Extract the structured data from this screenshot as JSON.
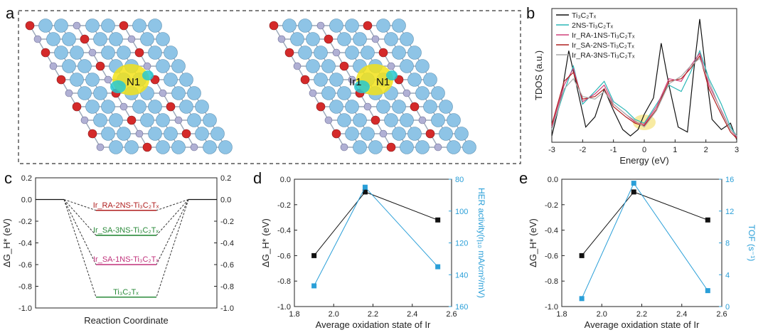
{
  "panel_a": {
    "label": "a",
    "left_structure": {
      "site_labels": [
        "N1"
      ]
    },
    "right_structure": {
      "site_labels": [
        "Ir1",
        "N1"
      ]
    },
    "colors": {
      "titanium": "#8ec4e6",
      "carbon": "#b0b0d4",
      "oxygen": "#d42a2a",
      "density_yellow": "#f2e21a",
      "density_cyan": "#27c8d0"
    }
  },
  "chart_data": [
    {
      "panel": "b",
      "type": "line",
      "title": "",
      "xlabel": "Energy (eV)",
      "ylabel": "TDOS (a.u.)",
      "xlim": [
        -3,
        3
      ],
      "xticks": [
        "-3",
        "-2",
        "-1",
        "0",
        "1",
        "2",
        "3"
      ],
      "legend": [
        "Ti₃C₂Tₓ",
        "2NS-Ti₃C₂Tₓ",
        "Ir_RA-1NS-Ti₃C₂Tₓ",
        "Ir_SA-2NS-Ti₃C₂Tₓ",
        "Ir_RA-3NS-Ti₃C₂Tₓ"
      ],
      "legend_placement": "top",
      "colors": [
        "#111111",
        "#2bb7b7",
        "#d0407a",
        "#b02020",
        "#aaaaaa"
      ],
      "series": [
        {
          "x": [
            -3,
            -2.7,
            -2.45,
            -2.2,
            -1.9,
            -1.6,
            -1.3,
            -1,
            -0.7,
            -0.45,
            -0.2,
            0,
            0.3,
            0.55,
            0.8,
            1.1,
            1.4,
            1.6,
            1.8,
            2.0,
            2.2,
            2.5,
            2.8,
            3
          ],
          "y": [
            0.05,
            0.35,
            0.72,
            0.45,
            0.12,
            0.2,
            0.42,
            0.25,
            0.1,
            0.05,
            0.1,
            0.22,
            0.35,
            0.78,
            0.45,
            0.12,
            0.08,
            0.55,
            0.97,
            0.55,
            0.18,
            0.1,
            0.15,
            0.02
          ]
        },
        {
          "x": [
            -3,
            -2.6,
            -2.3,
            -2.0,
            -1.6,
            -1.3,
            -1,
            -0.6,
            -0.3,
            0,
            0.4,
            0.8,
            1.2,
            1.5,
            1.8,
            2.1,
            2.5,
            2.8,
            3
          ],
          "y": [
            0.1,
            0.4,
            0.6,
            0.3,
            0.4,
            0.48,
            0.32,
            0.25,
            0.18,
            0.15,
            0.3,
            0.45,
            0.4,
            0.55,
            0.72,
            0.5,
            0.3,
            0.12,
            0.05
          ]
        },
        {
          "x": [
            -3,
            -2.6,
            -2.3,
            -2.0,
            -1.6,
            -1.3,
            -1,
            -0.6,
            -0.3,
            0,
            0.4,
            0.8,
            1.2,
            1.5,
            1.8,
            2.1,
            2.5,
            2.8,
            3
          ],
          "y": [
            0.12,
            0.45,
            0.58,
            0.32,
            0.38,
            0.45,
            0.3,
            0.22,
            0.16,
            0.14,
            0.28,
            0.5,
            0.48,
            0.6,
            0.7,
            0.45,
            0.25,
            0.1,
            0.04
          ]
        },
        {
          "x": [
            -3,
            -2.6,
            -2.3,
            -2.0,
            -1.6,
            -1.3,
            -1,
            -0.6,
            -0.3,
            0,
            0.4,
            0.8,
            1.2,
            1.5,
            1.8,
            2.1,
            2.5,
            2.8,
            3
          ],
          "y": [
            0.14,
            0.48,
            0.55,
            0.34,
            0.36,
            0.42,
            0.28,
            0.2,
            0.15,
            0.13,
            0.26,
            0.48,
            0.5,
            0.58,
            0.68,
            0.42,
            0.22,
            0.08,
            0.03
          ]
        },
        {
          "x": [
            -3,
            -2.6,
            -2.3,
            -2.0,
            -1.6,
            -1.3,
            -1,
            -0.6,
            -0.3,
            0,
            0.4,
            0.8,
            1.2,
            1.5,
            1.8,
            2.1,
            2.5,
            2.8,
            3
          ],
          "y": [
            0.1,
            0.42,
            0.5,
            0.36,
            0.34,
            0.4,
            0.3,
            0.22,
            0.17,
            0.12,
            0.25,
            0.46,
            0.52,
            0.6,
            0.66,
            0.48,
            0.24,
            0.1,
            0.05
          ]
        }
      ],
      "annotation": {
        "highlight_x": 0,
        "color": "#f5e27a"
      }
    },
    {
      "panel": "c",
      "type": "line",
      "xlabel": "Reaction Coordinate",
      "ylabel": "ΔG_H* (eV)",
      "ylim": [
        -1.0,
        0.2
      ],
      "yticks": [
        "0.2",
        "0.0",
        "-0.2",
        "-0.4",
        "-0.6",
        "-0.8",
        "-1.0"
      ],
      "levels": [
        {
          "name": "Ir_RA-2NS-Ti₃C₂Tₓ",
          "value": -0.1,
          "color": "#b02020"
        },
        {
          "name": "Ir_SA-3NS-Ti₃C₂Tₓ",
          "value": -0.33,
          "color": "#2a8a3a"
        },
        {
          "name": "Ir_SA-1NS-Ti₃C₂Tₓ",
          "value": -0.6,
          "color": "#c0307a"
        },
        {
          "name": "Ti₃C₂Tₓ",
          "value": -0.9,
          "color": "#2a8a3a"
        }
      ]
    },
    {
      "panel": "d",
      "type": "scatter",
      "xlabel": "Average oxidation state of Ir",
      "ylabel": "ΔG_H* (eV)",
      "ylabel_right": "HER activity(η₁₀ mA/cm²/mV)",
      "xlim": [
        1.8,
        2.6
      ],
      "ylim": [
        -1.0,
        0.0
      ],
      "ylim_right": [
        160,
        80
      ],
      "xticks": [
        "1.8",
        "2.0",
        "2.2",
        "2.4",
        "2.6"
      ],
      "yticks": [
        "0.0",
        "-0.2",
        "-0.4",
        "-0.6",
        "-0.8",
        "-1.0"
      ],
      "yticks_right": [
        "80",
        "100",
        "120",
        "140",
        "160"
      ],
      "series": [
        {
          "x": [
            1.9,
            2.16,
            2.53
          ],
          "values": [
            -0.6,
            -0.1,
            -0.32
          ],
          "color": "#111111",
          "axis": "left"
        },
        {
          "x": [
            1.9,
            2.16,
            2.53
          ],
          "values": [
            147,
            85,
            135
          ],
          "color": "#2a9fd8",
          "axis": "right"
        }
      ]
    },
    {
      "panel": "e",
      "type": "scatter",
      "xlabel": "Average oxidation state of Ir",
      "ylabel": "ΔG_H* (eV)",
      "ylabel_right": "TOF (s⁻¹)",
      "xlim": [
        1.8,
        2.6
      ],
      "ylim": [
        -1.0,
        0.0
      ],
      "ylim_right": [
        0,
        16
      ],
      "xticks": [
        "1.8",
        "2.0",
        "2.2",
        "2.4",
        "2.6"
      ],
      "yticks": [
        "0.0",
        "-0.2",
        "-0.4",
        "-0.6",
        "-0.8",
        "-1.0"
      ],
      "yticks_right": [
        "0",
        "4",
        "8",
        "12",
        "16"
      ],
      "series": [
        {
          "x": [
            1.9,
            2.16,
            2.53
          ],
          "values": [
            -0.6,
            -0.1,
            -0.32
          ],
          "color": "#111111",
          "axis": "left"
        },
        {
          "x": [
            1.9,
            2.16,
            2.53
          ],
          "values": [
            1,
            15.5,
            2
          ],
          "color": "#2a9fd8",
          "axis": "right"
        }
      ]
    }
  ],
  "labels": {
    "a": "a",
    "b": "b",
    "c": "c",
    "d": "d",
    "e": "e"
  }
}
